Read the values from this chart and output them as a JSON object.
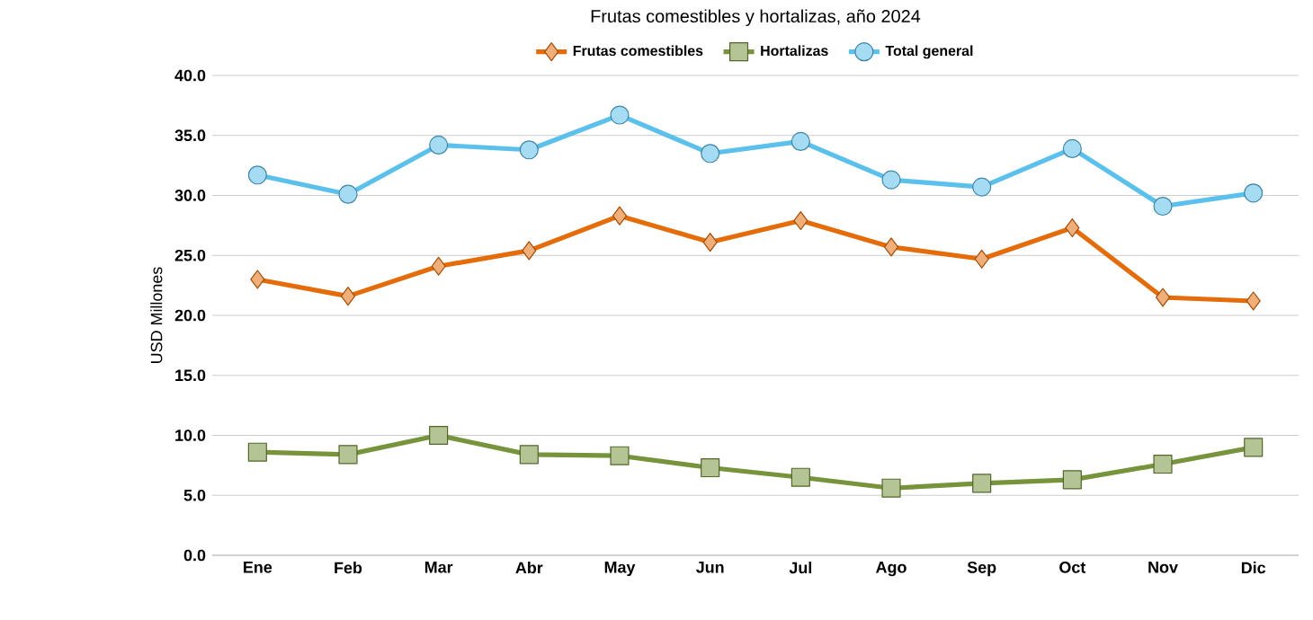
{
  "chart_data": {
    "type": "line",
    "title": "Frutas comestibles y hortalizas, año 2024",
    "ylabel": "USD Millones",
    "categories": [
      "Ene",
      "Feb",
      "Mar",
      "Abr",
      "May",
      "Jun",
      "Jul",
      "Ago",
      "Sep",
      "Oct",
      "Nov",
      "Dic"
    ],
    "series": [
      {
        "name": "Frutas comestibles",
        "color": "#e46c0a",
        "marker": "diamond",
        "values": [
          23.0,
          21.6,
          24.1,
          25.4,
          28.3,
          26.1,
          27.9,
          25.7,
          24.7,
          27.3,
          21.5,
          21.2
        ]
      },
      {
        "name": "Hortalizas",
        "color": "#77933c",
        "marker": "square",
        "values": [
          8.6,
          8.4,
          10.0,
          8.4,
          8.3,
          7.3,
          6.5,
          5.6,
          6.0,
          6.3,
          7.6,
          9.0
        ]
      },
      {
        "name": "Total general",
        "color": "#5bc0eb",
        "marker": "circle",
        "values": [
          31.7,
          30.1,
          34.2,
          33.8,
          36.7,
          33.5,
          34.5,
          31.3,
          30.7,
          33.9,
          29.1,
          30.2
        ]
      }
    ],
    "ylim": [
      0,
      40
    ],
    "yticks": [
      {
        "value": 0,
        "label": "0.0"
      },
      {
        "value": 5,
        "label": "5.0"
      },
      {
        "value": 10,
        "label": "10.0"
      },
      {
        "value": 15,
        "label": "15.0"
      },
      {
        "value": 20,
        "label": "20.0"
      },
      {
        "value": 25,
        "label": "25.0"
      },
      {
        "value": 30,
        "label": "30.0"
      },
      {
        "value": 35,
        "label": "35.0"
      },
      {
        "value": 40,
        "label": "40.0"
      }
    ],
    "grid": "y",
    "legend": "top",
    "line_style": "solid"
  }
}
